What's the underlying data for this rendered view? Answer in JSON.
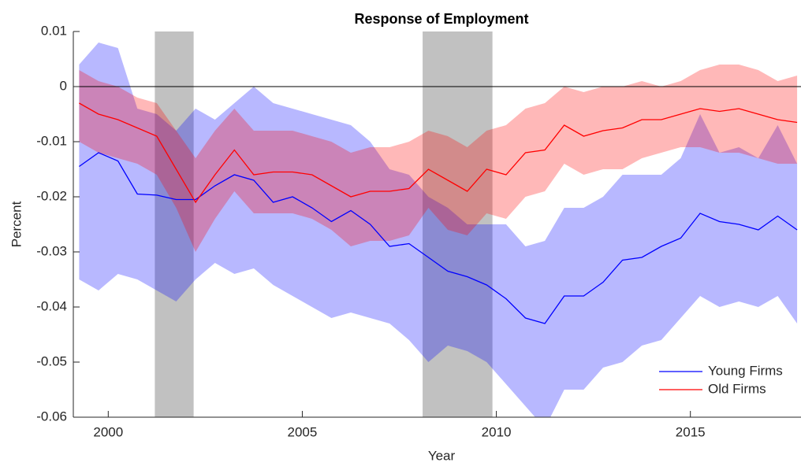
{
  "chart_data": {
    "type": "line",
    "title": "Response of Employment",
    "xlabel": "Year",
    "ylabel": "Percent",
    "x": [
      1999.25,
      1999.75,
      2000.25,
      2000.75,
      2001.25,
      2001.75,
      2002.25,
      2002.75,
      2003.25,
      2003.75,
      2004.25,
      2004.75,
      2005.25,
      2005.75,
      2006.25,
      2006.75,
      2007.25,
      2007.75,
      2008.25,
      2008.75,
      2009.25,
      2009.75,
      2010.25,
      2010.75,
      2011.25,
      2011.75,
      2012.25,
      2012.75,
      2013.25,
      2013.75,
      2014.25,
      2014.75,
      2015.25,
      2015.75,
      2016.25,
      2016.75,
      2017.25,
      2017.75
    ],
    "series": [
      {
        "name": "Young Firms",
        "color": "#0000ff",
        "values": [
          -0.0145,
          -0.012,
          -0.0135,
          -0.0195,
          -0.0197,
          -0.0205,
          -0.0205,
          -0.018,
          -0.016,
          -0.017,
          -0.021,
          -0.02,
          -0.022,
          -0.0245,
          -0.0225,
          -0.025,
          -0.029,
          -0.0285,
          -0.031,
          -0.0335,
          -0.0345,
          -0.036,
          -0.0385,
          -0.042,
          -0.043,
          -0.038,
          -0.038,
          -0.0355,
          -0.0315,
          -0.031,
          -0.029,
          -0.0275,
          -0.023,
          -0.0245,
          -0.025,
          -0.026,
          -0.0235,
          -0.026
        ],
        "upper": [
          0.004,
          0.008,
          0.007,
          -0.004,
          -0.005,
          -0.008,
          -0.004,
          -0.006,
          -0.003,
          0.0,
          -0.003,
          -0.004,
          -0.005,
          -0.006,
          -0.007,
          -0.01,
          -0.015,
          -0.016,
          -0.02,
          -0.022,
          -0.025,
          -0.025,
          -0.025,
          -0.029,
          -0.028,
          -0.022,
          -0.022,
          -0.02,
          -0.016,
          -0.016,
          -0.016,
          -0.013,
          -0.005,
          -0.012,
          -0.011,
          -0.013,
          -0.007,
          -0.014
        ],
        "lower": [
          -0.035,
          -0.037,
          -0.034,
          -0.035,
          -0.037,
          -0.039,
          -0.035,
          -0.032,
          -0.034,
          -0.033,
          -0.036,
          -0.038,
          -0.04,
          -0.042,
          -0.041,
          -0.042,
          -0.043,
          -0.046,
          -0.05,
          -0.047,
          -0.048,
          -0.05,
          -0.054,
          -0.058,
          -0.062,
          -0.055,
          -0.055,
          -0.051,
          -0.05,
          -0.047,
          -0.046,
          -0.042,
          -0.038,
          -0.04,
          -0.039,
          -0.04,
          -0.038,
          -0.043
        ]
      },
      {
        "name": "Old Firms",
        "color": "#ff0000",
        "values": [
          -0.003,
          -0.005,
          -0.006,
          -0.0075,
          -0.009,
          -0.015,
          -0.021,
          -0.016,
          -0.0115,
          -0.016,
          -0.0155,
          -0.0155,
          -0.016,
          -0.018,
          -0.02,
          -0.019,
          -0.019,
          -0.0185,
          -0.015,
          -0.017,
          -0.019,
          -0.015,
          -0.016,
          -0.012,
          -0.0115,
          -0.007,
          -0.009,
          -0.008,
          -0.0075,
          -0.006,
          -0.006,
          -0.005,
          -0.004,
          -0.0045,
          -0.004,
          -0.005,
          -0.006,
          -0.0065
        ],
        "upper": [
          0.003,
          0.001,
          0.0,
          -0.002,
          -0.003,
          -0.008,
          -0.013,
          -0.008,
          -0.004,
          -0.008,
          -0.008,
          -0.008,
          -0.009,
          -0.01,
          -0.012,
          -0.011,
          -0.011,
          -0.01,
          -0.008,
          -0.009,
          -0.011,
          -0.008,
          -0.007,
          -0.004,
          -0.003,
          0.0,
          -0.001,
          0.0,
          0.0,
          0.001,
          0.0,
          0.001,
          0.003,
          0.004,
          0.004,
          0.003,
          0.001,
          0.002
        ],
        "lower": [
          -0.01,
          -0.012,
          -0.013,
          -0.014,
          -0.016,
          -0.022,
          -0.03,
          -0.024,
          -0.019,
          -0.023,
          -0.023,
          -0.023,
          -0.024,
          -0.026,
          -0.029,
          -0.028,
          -0.028,
          -0.027,
          -0.022,
          -0.026,
          -0.027,
          -0.023,
          -0.024,
          -0.02,
          -0.019,
          -0.014,
          -0.016,
          -0.015,
          -0.015,
          -0.013,
          -0.012,
          -0.011,
          -0.011,
          -0.012,
          -0.012,
          -0.013,
          -0.014,
          -0.014
        ]
      }
    ],
    "shaded_ranges": [
      [
        2001.2,
        2002.2
      ],
      [
        2008.1,
        2009.9
      ]
    ],
    "shade_color": "#a0a0a0",
    "reference_line": 0,
    "xlim": [
      1999.1,
      2017.85
    ],
    "xticks": [
      2000,
      2005,
      2010,
      2015
    ],
    "ylim": [
      -0.06,
      0.01
    ],
    "yticks": [
      0.01,
      0,
      -0.01,
      -0.02,
      -0.03,
      -0.04,
      -0.05,
      -0.06
    ],
    "legend": "lower right",
    "grid": false
  }
}
